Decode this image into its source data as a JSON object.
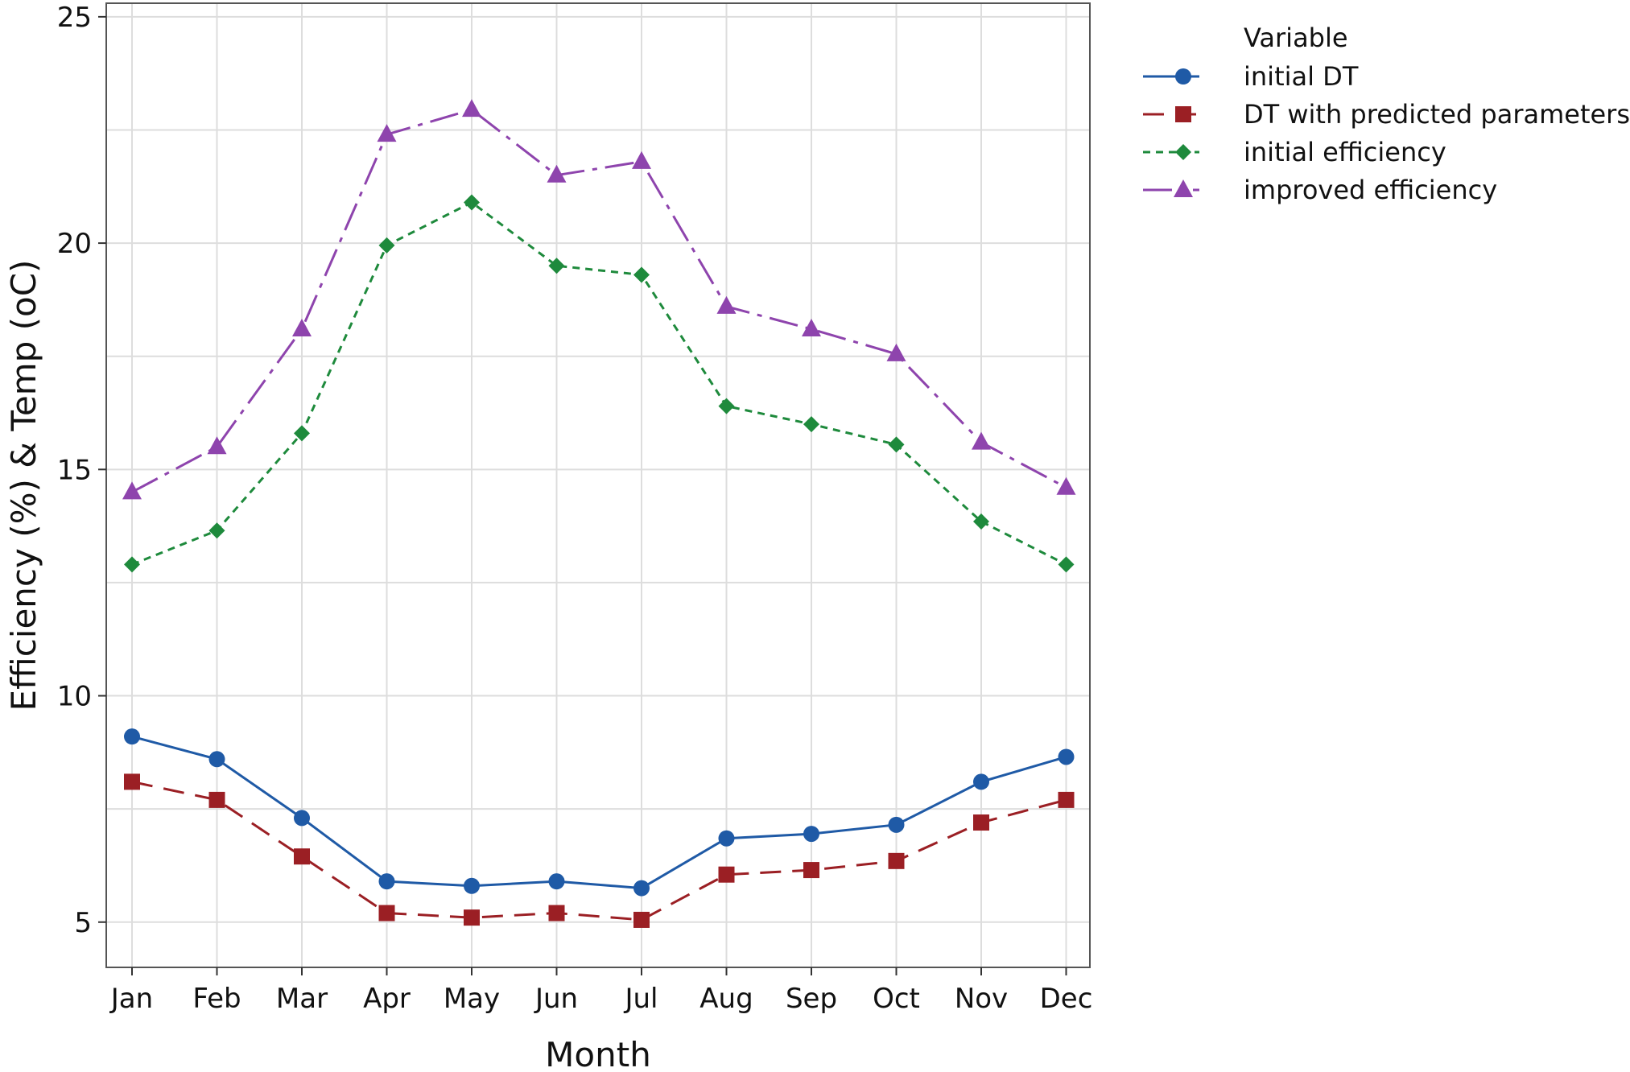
{
  "chart_data": {
    "type": "line",
    "title": "",
    "xlabel": "Month",
    "ylabel": "Efficiency (%) & Temp (oC)",
    "categories": [
      "Jan",
      "Feb",
      "Mar",
      "Apr",
      "May",
      "Jun",
      "Jul",
      "Aug",
      "Sep",
      "Oct",
      "Nov",
      "Dec"
    ],
    "ylim": [
      4,
      25.3
    ],
    "yticks": [
      5,
      10,
      15,
      20,
      25
    ],
    "grid": true,
    "legend": {
      "title": "Variable",
      "placement": "top-right outside"
    },
    "series": [
      {
        "name": "initial DT",
        "color": "#1F5AA6",
        "marker": "circle",
        "dash": "solid",
        "values": [
          9.1,
          8.6,
          7.3,
          5.9,
          5.8,
          5.9,
          5.75,
          6.85,
          6.95,
          7.15,
          8.1,
          8.65
        ]
      },
      {
        "name": "DT with predicted parameters",
        "color": "#9B1F24",
        "marker": "square",
        "dash": "longdash",
        "values": [
          8.1,
          7.7,
          6.45,
          5.2,
          5.1,
          5.2,
          5.05,
          6.05,
          6.15,
          6.35,
          7.2,
          7.7
        ]
      },
      {
        "name": "initial efficiency",
        "color": "#1E8A3C",
        "marker": "diamond",
        "dash": "short",
        "values": [
          12.9,
          13.65,
          15.8,
          19.95,
          20.9,
          19.5,
          19.3,
          16.4,
          16.0,
          15.55,
          13.85,
          12.9
        ]
      },
      {
        "name": "improved efficiency",
        "color": "#8E44AD",
        "marker": "triangle",
        "dash": "dashdot",
        "values": [
          14.5,
          15.5,
          18.1,
          22.4,
          22.95,
          21.5,
          21.8,
          18.6,
          18.1,
          17.55,
          15.6,
          14.6
        ]
      }
    ]
  }
}
